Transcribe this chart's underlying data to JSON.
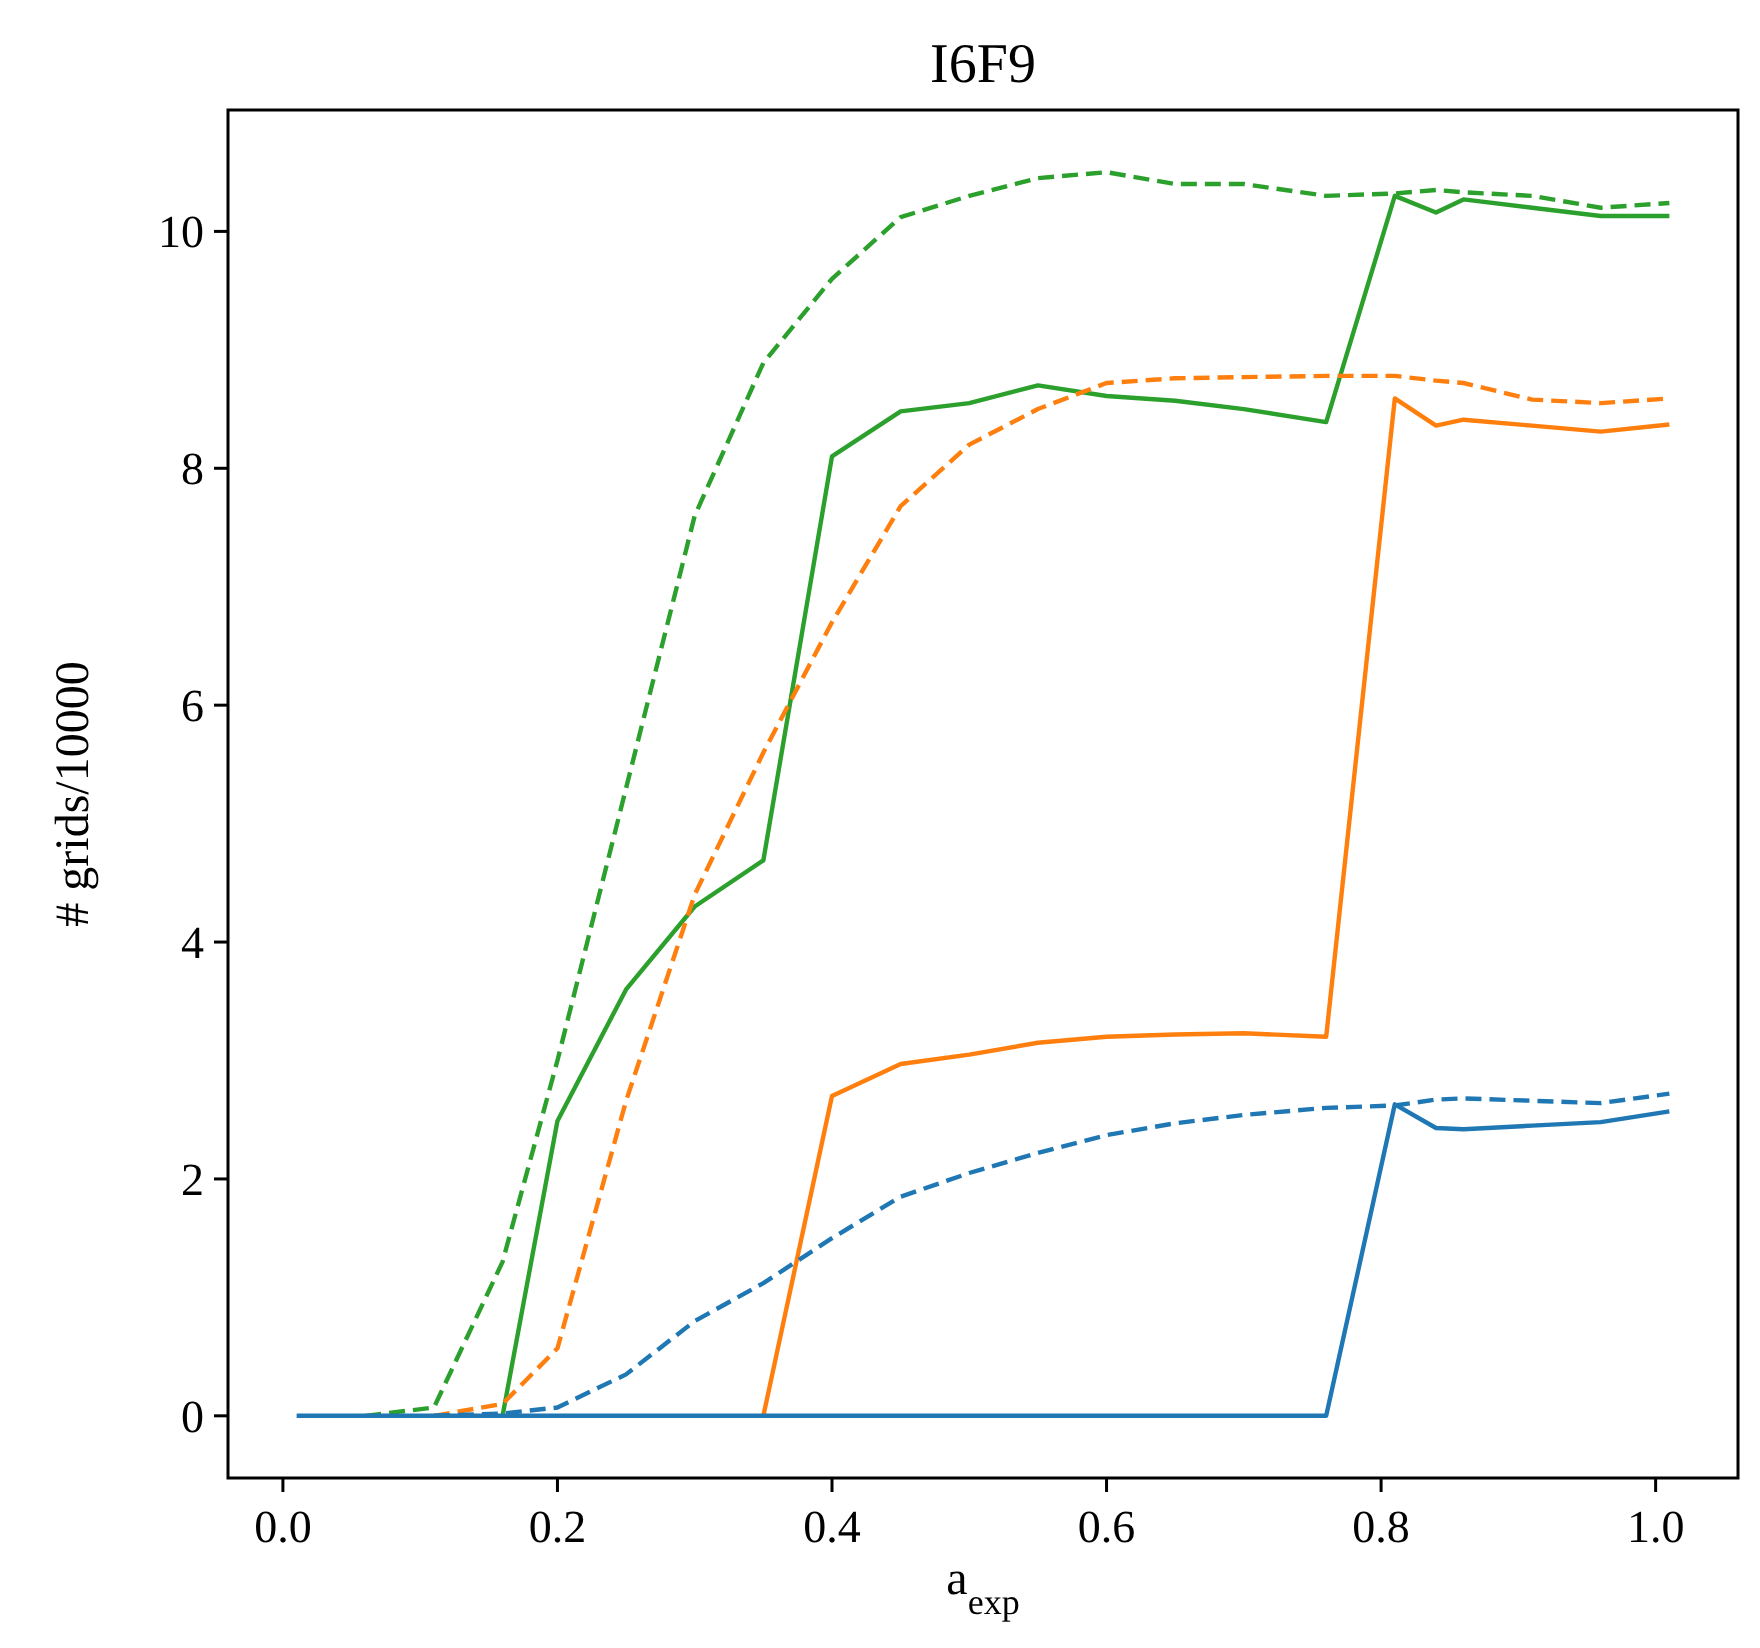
{
  "chart_data": {
    "type": "line",
    "title": "I6F9",
    "xlabel": "a$_{exp}$",
    "ylabel": "# grids/10000",
    "x": [
      0.01,
      0.06,
      0.11,
      0.16,
      0.2,
      0.25,
      0.3,
      0.35,
      0.4,
      0.45,
      0.5,
      0.55,
      0.6,
      0.65,
      0.7,
      0.76,
      0.81,
      0.84,
      0.86,
      0.91,
      0.96,
      1.01
    ],
    "series": [
      {
        "color": "#2ca02c",
        "line_style": "dashed",
        "values": [
          null,
          0,
          0.07,
          1.3,
          3.0,
          5.3,
          7.6,
          8.89,
          9.6,
          10.12,
          10.3,
          10.45,
          10.5,
          10.4,
          10.4,
          10.3,
          10.32,
          10.35,
          10.33,
          10.3,
          10.2,
          10.24
        ]
      },
      {
        "color": "#2ca02c",
        "line_style": "solid",
        "values": [
          null,
          null,
          null,
          0,
          2.49,
          3.6,
          4.3,
          4.69,
          8.1,
          8.48,
          8.55,
          8.7,
          8.61,
          8.57,
          8.5,
          8.39,
          10.3,
          10.16,
          10.27,
          10.2,
          10.13,
          10.13
        ]
      },
      {
        "color": "#ff7f0e",
        "line_style": "dashed",
        "values": [
          null,
          null,
          0,
          0.1,
          0.57,
          2.66,
          4.4,
          5.6,
          6.7,
          7.68,
          8.2,
          8.5,
          8.72,
          8.76,
          8.77,
          8.78,
          8.78,
          8.74,
          8.72,
          8.58,
          8.55,
          8.59
        ]
      },
      {
        "color": "#ff7f0e",
        "line_style": "solid",
        "values": [
          null,
          null,
          null,
          null,
          null,
          null,
          null,
          0,
          2.7,
          2.97,
          3.05,
          3.15,
          3.2,
          3.22,
          3.23,
          3.2,
          8.59,
          8.36,
          8.41,
          8.36,
          8.31,
          8.37
        ]
      },
      {
        "color": "#1f77b4",
        "line_style": "dashed",
        "values": [
          null,
          null,
          0,
          0.02,
          0.07,
          0.35,
          0.8,
          1.12,
          1.5,
          1.85,
          2.05,
          2.22,
          2.37,
          2.47,
          2.54,
          2.6,
          2.62,
          2.67,
          2.68,
          2.66,
          2.64,
          2.72
        ]
      },
      {
        "color": "#1f77b4",
        "line_style": "solid",
        "values": [
          0,
          0,
          0,
          0,
          0,
          0,
          0,
          0,
          0,
          0,
          0,
          0,
          0,
          0,
          0,
          0,
          2.63,
          2.43,
          2.42,
          2.45,
          2.48,
          2.57
        ]
      }
    ],
    "xlim": [
      -0.04,
      1.06
    ],
    "xticks": [
      {
        "value": 0,
        "label": "0.0"
      },
      0.2,
      0.4,
      0.6,
      0.8,
      {
        "value": 1,
        "label": "1.0"
      }
    ],
    "ylim": [
      -0.525,
      11.025
    ],
    "yticks": [
      0,
      2,
      4,
      6,
      8,
      10
    ]
  }
}
